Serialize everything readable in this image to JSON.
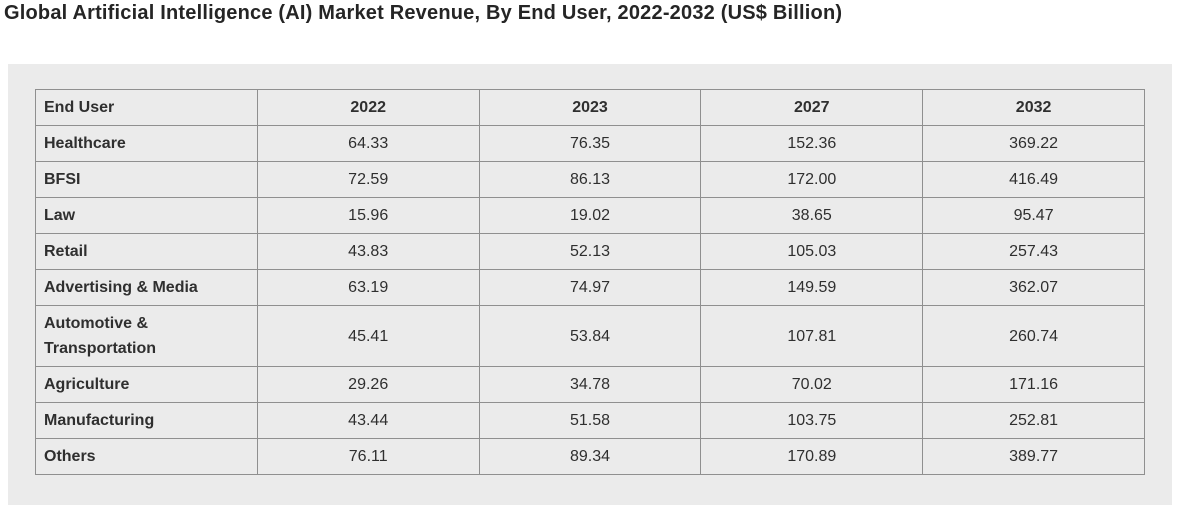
{
  "title": "Global Artificial Intelligence (AI) Market Revenue, By End User, 2022-2032 (US$ Billion)",
  "colors": {
    "page_bg": "#ffffff",
    "panel_bg": "#ebebeb",
    "table_border": "#8f8f8f",
    "title_text": "#252525",
    "cell_text": "#2f2f2f"
  },
  "chart_data": {
    "type": "table",
    "title": "Global Artificial Intelligence (AI) Market Revenue, By End User, 2022-2032 (US$ Billion)",
    "unit": "US$ Billion",
    "columns": [
      "End User",
      "2022",
      "2023",
      "2027",
      "2032"
    ],
    "rows": [
      {
        "end_user": "Healthcare",
        "values": [
          "64.33",
          "76.35",
          "152.36",
          "369.22"
        ]
      },
      {
        "end_user": "BFSI",
        "values": [
          "72.59",
          "86.13",
          "172.00",
          "416.49"
        ]
      },
      {
        "end_user": "Law",
        "values": [
          "15.96",
          "19.02",
          "38.65",
          "95.47"
        ]
      },
      {
        "end_user": "Retail",
        "values": [
          "43.83",
          "52.13",
          "105.03",
          "257.43"
        ]
      },
      {
        "end_user": "Advertising & Media",
        "values": [
          "63.19",
          "74.97",
          "149.59",
          "362.07"
        ]
      },
      {
        "end_user": "Automotive & Transportation",
        "values": [
          "45.41",
          "53.84",
          "107.81",
          "260.74"
        ]
      },
      {
        "end_user": "Agriculture",
        "values": [
          "29.26",
          "34.78",
          "70.02",
          "171.16"
        ]
      },
      {
        "end_user": "Manufacturing",
        "values": [
          "43.44",
          "51.58",
          "103.75",
          "252.81"
        ]
      },
      {
        "end_user": "Others",
        "values": [
          "76.11",
          "89.34",
          "170.89",
          "389.77"
        ]
      }
    ]
  }
}
